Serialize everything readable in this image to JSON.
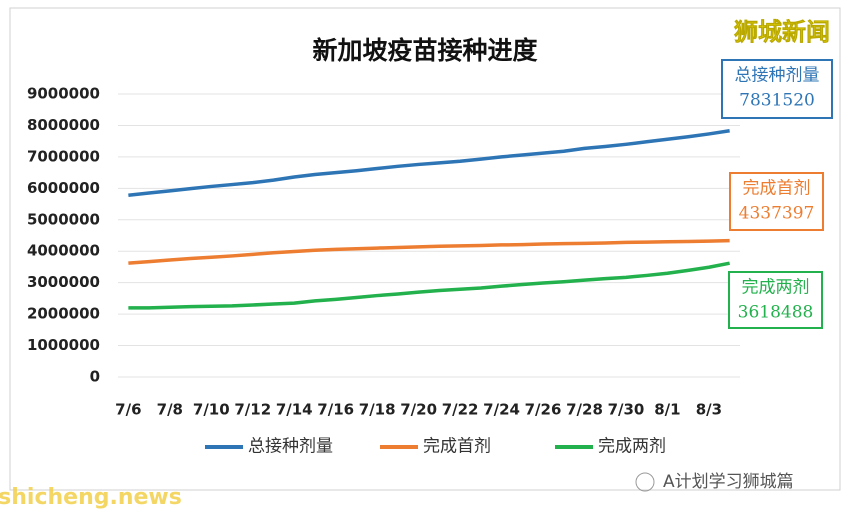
{
  "chart_data": {
    "type": "line",
    "title": "新加坡疫苗接种进度",
    "watermark": "狮城新闻",
    "source": "shicheng.news",
    "account": "A计划学习狮城篇",
    "categories": [
      "7/6",
      null,
      "7/8",
      null,
      "7/10",
      null,
      "7/12",
      null,
      "7/14",
      null,
      "7/16",
      null,
      "7/18",
      null,
      "7/20",
      null,
      "7/22",
      null,
      "7/24",
      null,
      "7/26",
      null,
      "7/28",
      null,
      "7/30",
      null,
      "8/1",
      null,
      "8/3",
      null
    ],
    "series": [
      {
        "name": "总接种剂量",
        "color": "#2e75b6",
        "values": [
          5780000,
          5850000,
          5920000,
          5990000,
          6060000,
          6120000,
          6180000,
          6260000,
          6360000,
          6440000,
          6500000,
          6560000,
          6630000,
          6700000,
          6760000,
          6810000,
          6860000,
          6930000,
          7000000,
          7060000,
          7120000,
          7180000,
          7270000,
          7330000,
          7400000,
          7480000,
          7560000,
          7640000,
          7730000,
          7831520
        ]
      },
      {
        "name": "完成首剂",
        "color": "#ed7d31",
        "values": [
          3620000,
          3670000,
          3720000,
          3770000,
          3810000,
          3850000,
          3900000,
          3950000,
          3990000,
          4030000,
          4060000,
          4080000,
          4100000,
          4120000,
          4140000,
          4160000,
          4170000,
          4180000,
          4200000,
          4210000,
          4230000,
          4240000,
          4250000,
          4260000,
          4280000,
          4290000,
          4300000,
          4310000,
          4320000,
          4337397
        ]
      },
      {
        "name": "完成两剂",
        "color": "#22b14c",
        "values": [
          2200000,
          2200000,
          2220000,
          2240000,
          2250000,
          2260000,
          2290000,
          2320000,
          2350000,
          2420000,
          2470000,
          2530000,
          2590000,
          2640000,
          2700000,
          2750000,
          2790000,
          2830000,
          2890000,
          2940000,
          2990000,
          3030000,
          3080000,
          3130000,
          3170000,
          3230000,
          3300000,
          3390000,
          3490000,
          3618488
        ]
      }
    ],
    "ylim": [
      0,
      9000000
    ],
    "yticks": [
      0,
      1000000,
      2000000,
      3000000,
      4000000,
      5000000,
      6000000,
      7000000,
      8000000,
      9000000
    ],
    "grid": true,
    "legend": "bottom"
  }
}
